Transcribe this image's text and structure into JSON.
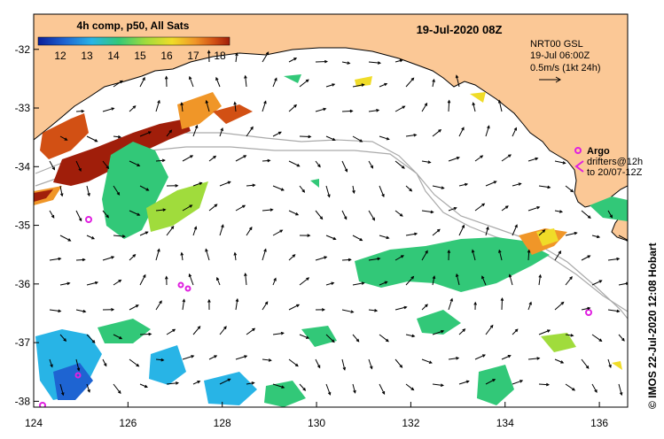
{
  "title": "19-Jul-2020 08Z",
  "colorbar": {
    "label": "4h comp, p50, All Sats",
    "ticks": [
      "12",
      "13",
      "14",
      "15",
      "16",
      "17",
      "18"
    ],
    "colors": [
      "#0a1e9a",
      "#1e64d2",
      "#28b4e6",
      "#32c878",
      "#a0dc3c",
      "#f0dc28",
      "#f09628",
      "#d25014",
      "#a01e0a"
    ]
  },
  "current_info": {
    "line1": "NRT00 GSL",
    "line2": "19-Jul 06:00Z",
    "line3": "0.5m/s (1kt 24h)"
  },
  "argo": {
    "label": "Argo",
    "drifters_line1": "drifters@12h",
    "drifters_line2": "to 20/07-12Z"
  },
  "axes": {
    "x_ticks": [
      "124",
      "126",
      "128",
      "130",
      "132",
      "134",
      "136"
    ],
    "y_ticks": [
      "-32",
      "-33",
      "-34",
      "-35",
      "-36",
      "-37",
      "-38"
    ],
    "xlim": [
      124,
      136.6
    ],
    "ylim": [
      -38.1,
      -31.4
    ]
  },
  "credit": "© IMOS 22-Jul-2020 12:08 Hobart",
  "colors": {
    "land": "#fbc896",
    "coast": "#000000",
    "arrow": "#000000",
    "argo": "#e020e0",
    "bathymetry": "#aaaaaa"
  }
}
